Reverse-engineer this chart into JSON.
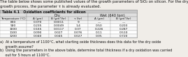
{
  "intro_line1": "The table below shows some published values of the growth parameters of SiO₂ on silicon. For the dry",
  "intro_line2": "growth process, the parameter τ is already evaluated.",
  "table_title": "Table 4.1   Oxidation coefficients for silicon",
  "group_dry": "Dry",
  "group_wet": "Wet (640 torr)",
  "col_headers": [
    "Temperature (°C)",
    "A (μm)",
    "B (μm²/hr)",
    "τ (hr)",
    "A (μm)",
    "B (μm²/hr)"
  ],
  "rows": [
    [
      "800",
      "0.370",
      "0.0011",
      "9",
      "—",
      "—"
    ],
    [
      "920",
      "0.235",
      "0.0049",
      "1.4",
      "0.50",
      "0.203"
    ],
    [
      "1000",
      "0.165",
      "0.0117",
      "0.37",
      "0.226",
      "0.287"
    ],
    [
      "1100",
      "0.090",
      "0.027",
      "0.076",
      "0.11",
      "0.510"
    ],
    [
      "1200",
      "0.040",
      "0.045",
      "0.027",
      "0.05",
      "0.720"
    ]
  ],
  "qa_a": "a)  At a temperature of 1100°C, what starting oxide thickness does this data for the dry oxide",
  "qa_a2": "     growth assume?",
  "qa_b": "b)  Using the parameters in the above table, determine ​total​ thickness if a dry oxidation was carried",
  "qa_b2": "     out for 5 hours at 1100°C.",
  "bg_color": "#f0ede8",
  "table_title_bg": "#c8c8c8",
  "header_bg": "#e0e0e0",
  "row_bg_even": "#f8f8f8",
  "row_bg_odd": "#ffffff",
  "border_color": "#999999",
  "text_color": "#111111"
}
